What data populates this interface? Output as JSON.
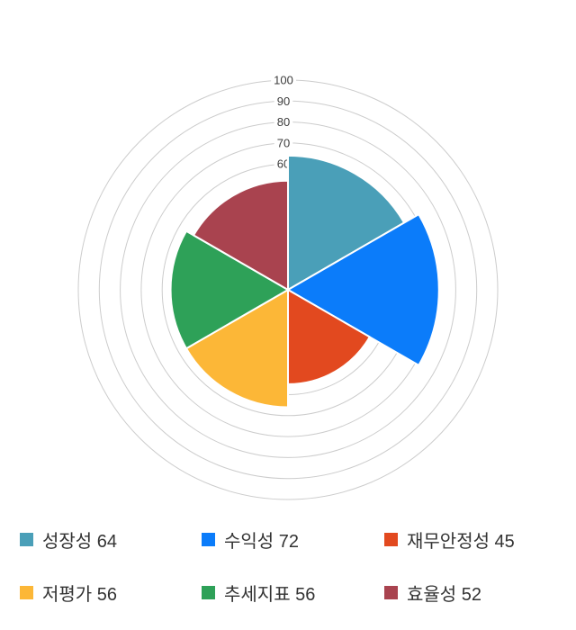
{
  "chart_data": {
    "type": "polar-area",
    "title": "",
    "categories": [
      "성장성",
      "수익성",
      "재무안정성",
      "저평가",
      "추세지표",
      "효율성"
    ],
    "values": [
      64,
      72,
      45,
      56,
      56,
      52
    ],
    "colors": [
      "#4A9FB8",
      "#0B7CFA",
      "#E2491F",
      "#FCB737",
      "#2EA158",
      "#A9434F"
    ],
    "start_angle_deg": 0,
    "direction": "clockwise",
    "sector_angle_deg": 60,
    "grid": true,
    "gridline_color": "#cccccc",
    "sector_border_color": "#ffffff",
    "radial_axis": {
      "min": 0,
      "max": 100,
      "tick_interval": 10,
      "tick_labels": [
        "100",
        "90",
        "80",
        "70",
        "60"
      ],
      "tick_label_color": "#3d3d3d"
    },
    "legend": {
      "position": "bottom",
      "items": [
        {
          "label": "성장성",
          "value": 64,
          "color": "#4A9FB8"
        },
        {
          "label": "수익성",
          "value": 72,
          "color": "#0B7CFA"
        },
        {
          "label": "재무안정성",
          "value": 45,
          "color": "#E2491F"
        },
        {
          "label": "저평가",
          "value": 56,
          "color": "#FCB737"
        },
        {
          "label": "추세지표",
          "value": 56,
          "color": "#2EA158"
        },
        {
          "label": "효율성",
          "value": 52,
          "color": "#A9434F"
        }
      ]
    }
  }
}
